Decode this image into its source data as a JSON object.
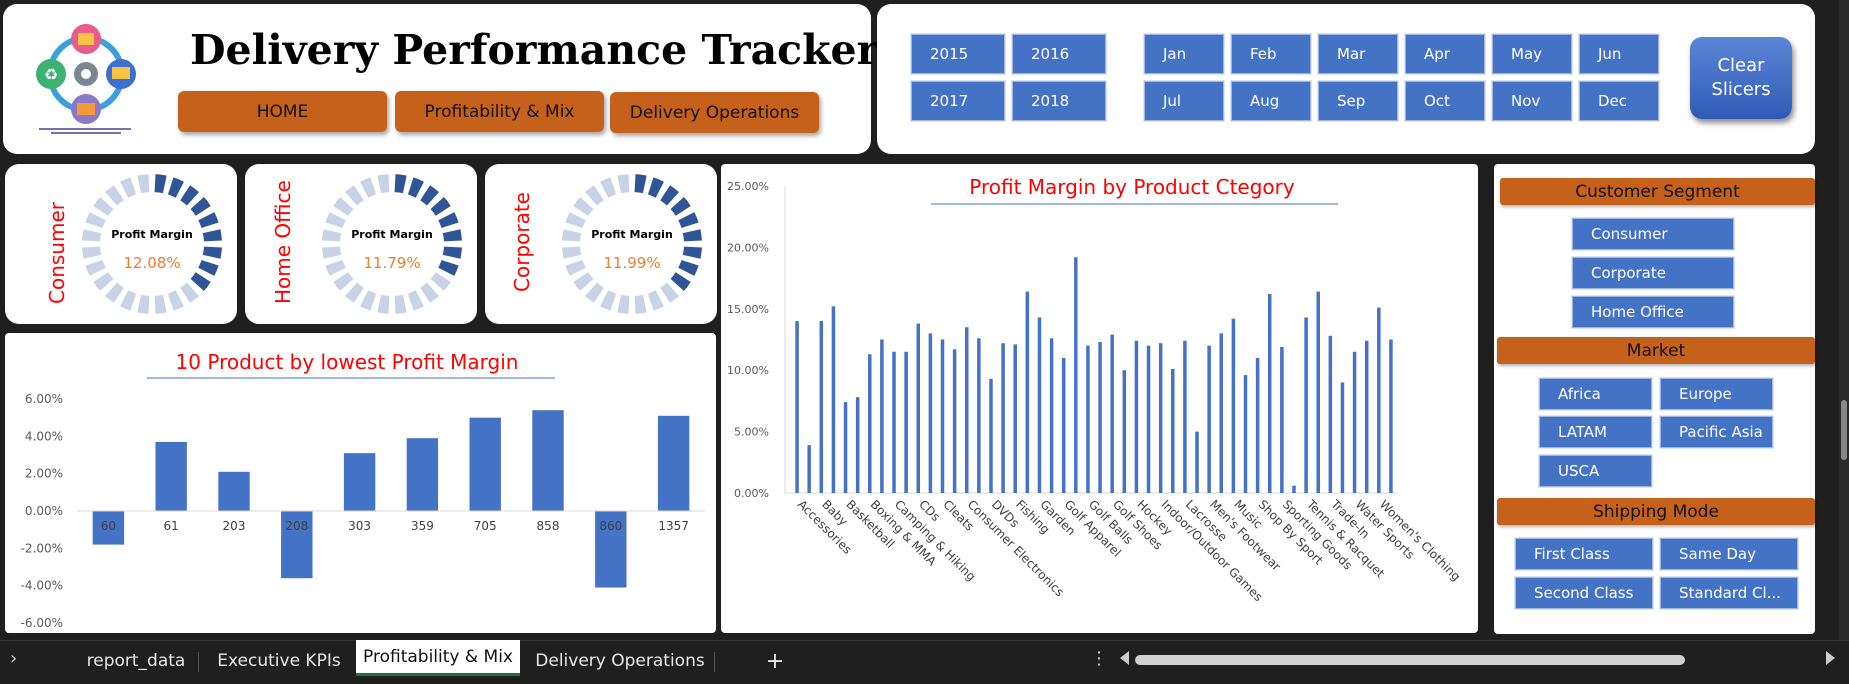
{
  "header": {
    "title": "Delivery Performance Tracker",
    "nav": [
      "HOME",
      "Profitability & Mix",
      "Delivery Operations"
    ]
  },
  "years": [
    "2015",
    "2016",
    "2017",
    "2018"
  ],
  "months": [
    "Jan",
    "Feb",
    "Mar",
    "Apr",
    "May",
    "Jun",
    "Jul",
    "Aug",
    "Sep",
    "Oct",
    "Nov",
    "Dec"
  ],
  "clear_slicers": "Clear Slicers",
  "kpis": [
    {
      "segment": "Consumer",
      "label": "Profit Margin",
      "value": "12.08%",
      "fraction": 0.37
    },
    {
      "segment": "Home Office",
      "label": "Profit Margin",
      "value": "11.79%",
      "fraction": 0.34
    },
    {
      "segment": "Corporate",
      "label": "Profit Margin",
      "value": "11.99%",
      "fraction": 0.36
    }
  ],
  "slicers": {
    "segment_title": "Customer Segment",
    "segments": [
      "Consumer",
      "Corporate",
      "Home Office"
    ],
    "market_title": "Market",
    "markets": [
      "Africa",
      "Europe",
      "LATAM",
      "Pacific Asia",
      "USCA"
    ],
    "shipping_title": "Shipping Mode",
    "shipping": [
      "First Class",
      "Same Day",
      "Second Class",
      "Standard Cl..."
    ]
  },
  "tabs": [
    "report_data",
    "Executive KPIs",
    "Profitability & Mix",
    "Delivery Operations"
  ],
  "add_sheet": "+",
  "colors": {
    "accent": "#c5611a",
    "slicer": "#4472c4",
    "bar": "#4472c4",
    "title_red": "#ff0000",
    "kpi_value": "#ed7d31"
  },
  "chart_data": [
    {
      "type": "bar",
      "title": "10 Product by lowest Profit Margin",
      "categories": [
        "60",
        "61",
        "203",
        "208",
        "303",
        "359",
        "705",
        "858",
        "860",
        "1357"
      ],
      "values": [
        -1.8,
        3.7,
        2.1,
        -3.6,
        3.1,
        3.9,
        5.0,
        5.4,
        -4.1,
        5.1
      ],
      "ylim": [
        -6,
        6
      ],
      "yticks": [
        "-6.00%",
        "-4.00%",
        "-2.00%",
        "0.00%",
        "2.00%",
        "4.00%",
        "6.00%"
      ]
    },
    {
      "type": "bar",
      "title": "Profit Margin by Product Ctegory",
      "categories": [
        "Accessories",
        "",
        "Baby",
        "",
        "Basketball",
        "",
        "Boxing & MMA",
        "",
        "Camping & Hiking",
        "",
        "CDs",
        "",
        "Cleats",
        "",
        "Consumer Electronics",
        "",
        "DVDs",
        "",
        "Fishing",
        "",
        "Garden",
        "",
        "Golf Apparel",
        "",
        "Golf Balls",
        "",
        "Golf Shoes",
        "",
        "Hockey",
        "",
        "Indoor/Outdoor Games",
        "",
        "Lacrosse",
        "",
        "Men's Footwear",
        "",
        "Music",
        "",
        "Shop By Sport",
        "",
        "Sporting Goods",
        "",
        "Tennis & Racquet",
        "",
        "Trade-In",
        "",
        "Water Sports",
        "",
        "Women's Clothing",
        ""
      ],
      "values": [
        14.0,
        3.9,
        14.0,
        15.2,
        7.4,
        7.8,
        11.3,
        12.5,
        11.5,
        11.5,
        13.8,
        13.0,
        12.5,
        11.7,
        13.5,
        12.6,
        9.3,
        12.2,
        12.1,
        16.4,
        14.3,
        12.6,
        11.0,
        19.2,
        12.0,
        12.3,
        12.9,
        10.0,
        12.4,
        12.0,
        12.2,
        10.1,
        12.4,
        5.0,
        12.0,
        13.0,
        14.2,
        9.6,
        11.0,
        16.2,
        11.9,
        0.6,
        14.3,
        16.4,
        12.8,
        9.0,
        11.5,
        12.4,
        15.1,
        12.5
      ],
      "ylim": [
        0,
        25
      ],
      "yticks": [
        "0.00%",
        "5.00%",
        "10.00%",
        "15.00%",
        "20.00%",
        "25.00%"
      ]
    }
  ]
}
